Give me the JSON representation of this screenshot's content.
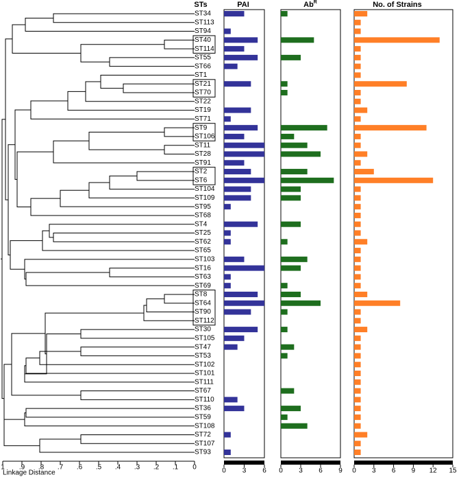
{
  "chart_data": {
    "type": "bar",
    "categories_title": "STs",
    "categories": [
      "ST34",
      "ST113",
      "ST94",
      "ST40",
      "ST114",
      "ST55",
      "ST66",
      "ST1",
      "ST21",
      "ST70",
      "ST22",
      "ST19",
      "ST71",
      "ST9",
      "ST106",
      "ST11",
      "ST28",
      "ST91",
      "ST2",
      "ST6",
      "ST104",
      "ST109",
      "ST95",
      "ST68",
      "ST4",
      "ST25",
      "ST62",
      "ST65",
      "ST103",
      "ST16",
      "ST63",
      "ST69",
      "ST8",
      "ST64",
      "ST90",
      "ST112",
      "ST30",
      "ST105",
      "ST47",
      "ST53",
      "ST102",
      "ST101",
      "ST111",
      "ST67",
      "ST110",
      "ST36",
      "ST59",
      "ST108",
      "ST72",
      "ST107",
      "ST93"
    ],
    "label_colors": [
      "#000",
      "#000",
      "#c00",
      "#000",
      "#000",
      "#000",
      "#000",
      "#000",
      "#000",
      "#000",
      "#000",
      "#000",
      "#000",
      "#000",
      "#000",
      "#c00",
      "#c00",
      "#000",
      "#000",
      "#c00",
      "#000",
      "#000",
      "#000",
      "#000",
      "#c00",
      "#000",
      "#000",
      "#c00",
      "#000",
      "#c00",
      "#000",
      "#000",
      "#c00",
      "#000",
      "#c00",
      "#c00",
      "#000",
      "#000",
      "#000",
      "#c00",
      "#000",
      "#000",
      "#000",
      "#000",
      "#000",
      "#000",
      "#000",
      "#c00",
      "#000",
      "#000",
      "#000"
    ],
    "series": [
      {
        "name": "PAI",
        "color": "#333399",
        "xlim": [
          0,
          6
        ],
        "xticks": [
          0,
          3,
          6
        ],
        "values": [
          3,
          0,
          1,
          5,
          3,
          5,
          2,
          0,
          4,
          0,
          0,
          4,
          1,
          5,
          3,
          6,
          6,
          3,
          4,
          6,
          4,
          4,
          1,
          0,
          5,
          1,
          1,
          0,
          3,
          6,
          1,
          1,
          5,
          6,
          4,
          0,
          5,
          3,
          2,
          0,
          0,
          0,
          0,
          0,
          2,
          3,
          0,
          0,
          1,
          0,
          1
        ]
      },
      {
        "name": "Ab",
        "name_sup": "R",
        "color": "#1e6e1e",
        "xlim": [
          0,
          9
        ],
        "xticks": [
          0,
          3,
          6,
          9
        ],
        "values": [
          1,
          0,
          0,
          5,
          0,
          3,
          0,
          0,
          1,
          1,
          0,
          0,
          0,
          7,
          2,
          4,
          6,
          0,
          4,
          8,
          3,
          3,
          0,
          0,
          3,
          0,
          1,
          0,
          4,
          3,
          0,
          1,
          3,
          6,
          1,
          0,
          1,
          0,
          2,
          1,
          0,
          0,
          0,
          2,
          0,
          3,
          1,
          4,
          0,
          0,
          0
        ]
      },
      {
        "name": "No. of Strains",
        "color": "#ff7f27",
        "xlim": [
          0,
          15
        ],
        "xticks": [
          0,
          3,
          6,
          9,
          12,
          15
        ],
        "values": [
          2,
          1,
          1,
          13,
          1,
          1,
          1,
          1,
          8,
          1,
          1,
          2,
          1,
          11,
          1,
          1,
          2,
          1,
          3,
          12,
          1,
          1,
          1,
          1,
          1,
          1,
          2,
          1,
          1,
          1,
          1,
          1,
          2,
          7,
          1,
          1,
          2,
          1,
          1,
          1,
          1,
          1,
          1,
          1,
          1,
          1,
          1,
          1,
          2,
          1,
          1
        ]
      }
    ],
    "dendrogram_xlabel": "Linkage Distance",
    "dendrogram_xlim": [
      1,
      0
    ],
    "dendrogram_xticks": [
      1,
      {
        "value": 0.9,
        "label": ".9"
      },
      {
        "value": 0.8,
        "label": ".8"
      },
      {
        "value": 0.7,
        "label": ".7"
      },
      {
        "value": 0.6,
        "label": ".6"
      },
      {
        "value": 0.5,
        "label": ".5"
      },
      {
        "value": 0.4,
        "label": ".4"
      },
      {
        "value": 0.3,
        "label": ".3"
      },
      {
        "value": 0.2,
        "label": ".2"
      },
      {
        "value": 0.1,
        "label": ".1"
      },
      0
    ]
  }
}
